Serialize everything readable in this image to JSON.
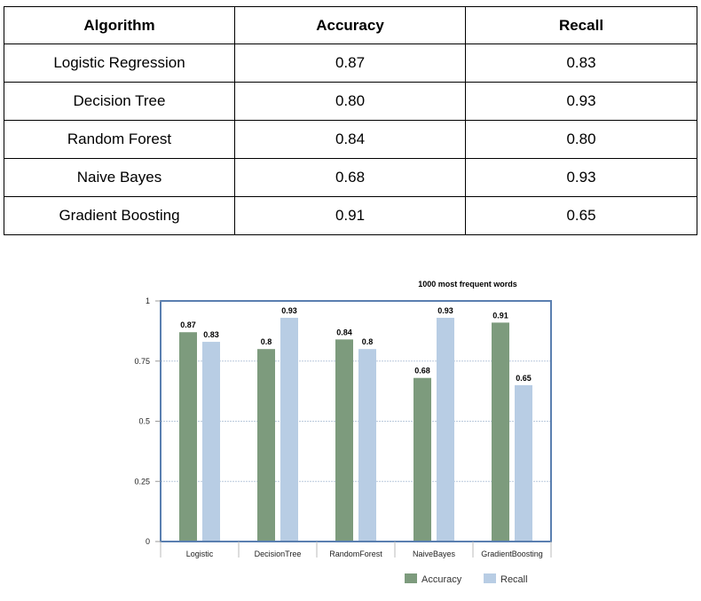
{
  "table": {
    "headers": [
      "Algorithm",
      "Accuracy",
      "Recall"
    ],
    "rows": [
      [
        "Logistic Regression",
        "0.87",
        "0.83"
      ],
      [
        "Decision Tree",
        "0.80",
        "0.93"
      ],
      [
        "Random Forest",
        "0.84",
        "0.80"
      ],
      [
        "Naive Bayes",
        "0.68",
        "0.93"
      ],
      [
        "Gradient Boosting",
        "0.91",
        "0.65"
      ]
    ]
  },
  "chart_data": {
    "type": "bar",
    "title": "1000 most frequent words",
    "categories": [
      "Logistic",
      "DecisionTree",
      "RandomForest",
      "NaiveBayes",
      "GradientBoosting"
    ],
    "series": [
      {
        "name": "Accuracy",
        "values": [
          0.87,
          0.8,
          0.84,
          0.68,
          0.91
        ],
        "labels": [
          "0.87",
          "0.8",
          "0.84",
          "0.68",
          "0.91"
        ],
        "color": "#7d9b7d"
      },
      {
        "name": "Recall",
        "values": [
          0.83,
          0.93,
          0.8,
          0.93,
          0.65
        ],
        "labels": [
          "0.83",
          "0.93",
          "0.8",
          "0.93",
          "0.65"
        ],
        "color": "#b8cde4"
      }
    ],
    "ylim": [
      0,
      1
    ],
    "yticks": [
      0,
      0.25,
      0.5,
      0.75,
      1
    ],
    "ytick_labels": [
      "0",
      "0.25",
      "0.5",
      "0.75",
      "1"
    ],
    "grid": true,
    "legend": "bottom-right",
    "frame_color": "#5a7fb0",
    "grid_color": "#b9c9db"
  }
}
